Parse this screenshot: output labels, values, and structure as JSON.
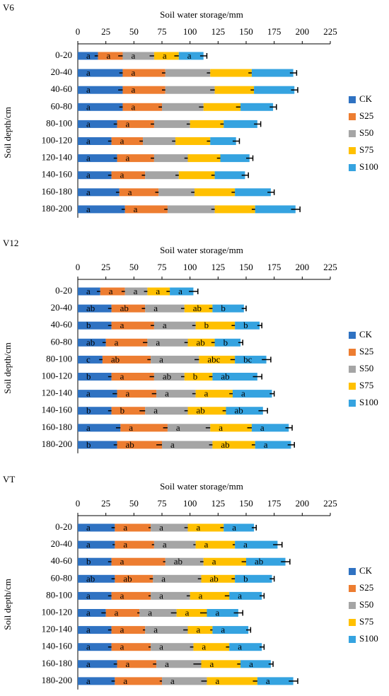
{
  "chart_data": [
    {
      "type": "stacked-barh",
      "panel": "V6",
      "title": "Soil water storage/mm",
      "ylabel": "Soil depth/cm",
      "categories": [
        "0-20",
        "20-40",
        "40-60",
        "60-80",
        "80-100",
        "100-120",
        "120-140",
        "140-160",
        "160-180",
        "180-200"
      ],
      "xlim": [
        0,
        225
      ],
      "xticks": [
        0,
        25,
        50,
        75,
        100,
        125,
        150,
        175,
        200,
        225
      ],
      "series": [
        {
          "name": "CK",
          "color": "#2f72c2",
          "values": [
            18,
            40,
            40,
            40,
            35,
            30,
            35,
            30,
            37,
            42
          ],
          "errors": [
            3,
            3,
            4,
            3,
            3,
            3,
            3,
            3,
            3,
            3
          ],
          "labels": [
            "a",
            "a",
            "a",
            "a",
            "a",
            "a",
            "a",
            "a",
            "a",
            "a"
          ]
        },
        {
          "name": "S25",
          "color": "#ed7d31",
          "values": [
            22,
            38,
            38,
            35,
            33,
            28,
            33,
            30,
            35,
            38
          ],
          "errors": [
            4,
            3,
            3,
            3,
            3,
            3,
            3,
            3,
            3,
            3
          ],
          "labels": [
            "a",
            "a",
            "a",
            "a",
            "a",
            "a",
            "a",
            "a",
            "a",
            "a"
          ]
        },
        {
          "name": "S50",
          "color": "#a5a5a5",
          "values": [
            28,
            40,
            44,
            37,
            32,
            29,
            30,
            30,
            32,
            42
          ],
          "errors": [
            4,
            3,
            4,
            4,
            3,
            3,
            3,
            3,
            3,
            3
          ],
          "labels": [
            "a",
            null,
            null,
            null,
            null,
            null,
            null,
            null,
            null,
            null
          ]
        },
        {
          "name": "S75",
          "color": "#ffc000",
          "values": [
            22,
            37,
            35,
            33,
            30,
            31,
            29,
            32,
            36,
            36
          ],
          "errors": [
            4,
            3,
            3,
            4,
            3,
            3,
            3,
            3,
            3,
            3
          ],
          "labels": [
            "a",
            null,
            null,
            null,
            null,
            null,
            null,
            null,
            null,
            null
          ]
        },
        {
          "name": "S100",
          "color": "#35a3e0",
          "values": [
            22,
            37,
            36,
            29,
            30,
            23,
            26,
            27,
            32,
            36
          ],
          "errors": [
            3,
            3,
            3,
            3,
            3,
            3,
            3,
            3,
            3,
            4
          ],
          "labels": [
            "a",
            null,
            null,
            null,
            null,
            null,
            null,
            null,
            null,
            null
          ]
        }
      ]
    },
    {
      "type": "stacked-barh",
      "panel": "V12",
      "title": "Soil water storage/mm",
      "ylabel": "Soil depth/cm",
      "categories": [
        "0-20",
        "20-40",
        "40-60",
        "60-80",
        "80-100",
        "100-120",
        "120-140",
        "140-160",
        "160-180",
        "180-200"
      ],
      "xlim": [
        0,
        225
      ],
      "xticks": [
        0,
        25,
        50,
        75,
        100,
        125,
        150,
        175,
        200,
        225
      ],
      "series": [
        {
          "name": "CK",
          "color": "#2f72c2",
          "values": [
            20,
            30,
            30,
            25,
            22,
            30,
            35,
            30,
            38,
            35
          ],
          "errors": [
            3,
            3,
            3,
            3,
            3,
            3,
            4,
            3,
            4,
            3
          ],
          "labels": [
            "a",
            "ab",
            "b",
            "ab",
            "c",
            "b",
            "a",
            "b",
            "a",
            "b"
          ]
        },
        {
          "name": "S25",
          "color": "#ed7d31",
          "values": [
            22,
            30,
            38,
            37,
            43,
            38,
            35,
            30,
            42,
            40
          ],
          "errors": [
            3,
            3,
            3,
            4,
            3,
            4,
            4,
            5,
            4,
            5
          ],
          "labels": [
            "a",
            "ab",
            "a",
            "a",
            "ab",
            "a",
            "a",
            "b",
            "a",
            "ab"
          ]
        },
        {
          "name": "S50",
          "color": "#a5a5a5",
          "values": [
            20,
            35,
            37,
            36,
            43,
            27,
            35,
            38,
            38,
            45
          ],
          "errors": [
            3,
            3,
            3,
            3,
            4,
            3,
            3,
            3,
            4,
            3
          ],
          "labels": [
            "a",
            "a",
            "a",
            "a",
            "a",
            "ab",
            "a",
            "a",
            "a",
            "a"
          ]
        },
        {
          "name": "S75",
          "color": "#ffc000",
          "values": [
            20,
            25,
            35,
            24,
            32,
            25,
            33,
            34,
            37,
            38
          ],
          "errors": [
            3,
            3,
            3,
            3,
            4,
            3,
            3,
            3,
            4,
            3
          ],
          "labels": [
            "a",
            "ab",
            "b",
            "ab",
            "abc",
            "b",
            "a",
            "ab",
            "a",
            "ab"
          ]
        },
        {
          "name": "S100",
          "color": "#35a3e0",
          "values": [
            21,
            28,
            22,
            23,
            28,
            40,
            35,
            33,
            33,
            32
          ],
          "errors": [
            4,
            2,
            2,
            2,
            4,
            4,
            2,
            4,
            3,
            3
          ],
          "labels": [
            "a",
            "b",
            "b",
            "b",
            "bc",
            "ab",
            "a",
            "ab",
            "a",
            "a"
          ]
        }
      ]
    },
    {
      "type": "stacked-barh",
      "panel": "VT",
      "title": "Soil water storage/mm",
      "ylabel": "Soil depth/cm",
      "categories": [
        "0-20",
        "20-40",
        "40-60",
        "60-80",
        "80-100",
        "100-120",
        "120-140",
        "140-160",
        "160-180",
        "180-200"
      ],
      "xlim": [
        0,
        225
      ],
      "xticks": [
        0,
        25,
        50,
        75,
        100,
        125,
        150,
        175,
        200,
        225
      ],
      "series": [
        {
          "name": "CK",
          "color": "#2f72c2",
          "values": [
            33,
            33,
            30,
            33,
            30,
            25,
            30,
            30,
            35,
            33
          ],
          "errors": [
            3,
            2,
            3,
            3,
            3,
            4,
            3,
            3,
            3,
            3
          ],
          "labels": [
            "a",
            "a",
            "b",
            "ab",
            "a",
            "a",
            "a",
            "a",
            "a",
            "a"
          ]
        },
        {
          "name": "S25",
          "color": "#ed7d31",
          "values": [
            32,
            35,
            48,
            34,
            35,
            30,
            30,
            35,
            35,
            42
          ],
          "errors": [
            2,
            2,
            2,
            3,
            2,
            2,
            2,
            2,
            3,
            2
          ],
          "labels": [
            "a",
            "a",
            "a",
            "ab",
            "a",
            "a",
            "a",
            "a",
            "a",
            "a"
          ]
        },
        {
          "name": "S50",
          "color": "#a5a5a5",
          "values": [
            33,
            37,
            34,
            43,
            35,
            33,
            38,
            38,
            40,
            40
          ],
          "errors": [
            3,
            2,
            3,
            3,
            3,
            5,
            4,
            3,
            7,
            5
          ],
          "labels": [
            "a",
            "a",
            "ab",
            "a",
            "a",
            "a",
            "a",
            "a",
            "a",
            "a"
          ]
        },
        {
          "name": "S75",
          "color": "#ffc000",
          "values": [
            32,
            35,
            38,
            30,
            35,
            27,
            22,
            32,
            35,
            45
          ],
          "errors": [
            3,
            2,
            4,
            3,
            4,
            6,
            2,
            3,
            3,
            4
          ],
          "labels": [
            "a",
            "a",
            "a",
            "ab",
            "a",
            "a",
            "a",
            "a",
            "a",
            "a"
          ]
        },
        {
          "name": "S100",
          "color": "#35a3e0",
          "values": [
            27,
            38,
            35,
            33,
            29,
            28,
            32,
            29,
            27,
            32
          ],
          "errors": [
            2,
            4,
            4,
            2,
            2,
            4,
            2,
            2,
            2,
            4
          ],
          "labels": [
            "a",
            "a",
            "ab",
            "b",
            "a",
            "a",
            "a",
            "a",
            "a",
            "a"
          ]
        }
      ]
    }
  ]
}
